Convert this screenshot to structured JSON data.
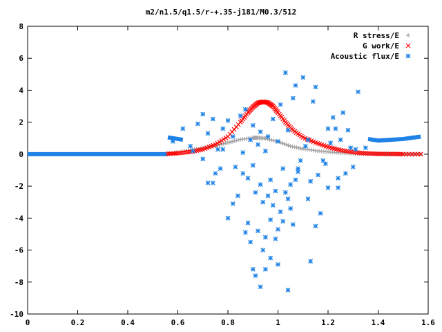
{
  "chart_data": {
    "type": "scatter",
    "title": "m2/n1.5/q1.5/r-+.35-j181/M0.3/512",
    "xlabel": "",
    "ylabel": "",
    "xlim": [
      0,
      1.6
    ],
    "ylim": [
      -10,
      8
    ],
    "x_ticks": [
      "0",
      "0.2",
      "0.4",
      "0.6",
      "0.8",
      "1",
      "1.2",
      "1.4",
      "1.6"
    ],
    "x_tick_values": [
      0,
      0.2,
      0.4,
      0.6,
      0.8,
      1.0,
      1.2,
      1.4,
      1.6
    ],
    "y_ticks": [
      "-10",
      "-8",
      "-6",
      "-4",
      "-2",
      "0",
      "2",
      "4",
      "6",
      "8"
    ],
    "y_tick_values": [
      -10,
      -8,
      -6,
      -4,
      -2,
      0,
      2,
      4,
      6,
      8
    ],
    "grid": false,
    "legend_position": "top-right",
    "series": [
      {
        "name": "R stress/E",
        "marker": "plus",
        "color": "#a0a0a0",
        "x": [
          0.56,
          0.6,
          0.65,
          0.7,
          0.75,
          0.8,
          0.85,
          0.9,
          0.92,
          0.95,
          1.0,
          1.05,
          1.1,
          1.15,
          1.2,
          1.25,
          1.3,
          1.35,
          1.4,
          1.45,
          1.5,
          1.57
        ],
        "values": [
          0.02,
          0.12,
          0.25,
          0.38,
          0.52,
          0.72,
          0.92,
          1.02,
          1.03,
          0.98,
          0.78,
          0.5,
          0.33,
          0.22,
          0.14,
          0.08,
          0.04,
          0.02,
          0.01,
          0.0,
          0.0,
          0.0
        ]
      },
      {
        "name": "G work/E",
        "marker": "cross",
        "color": "#ff0000",
        "x": [
          0.56,
          0.6,
          0.65,
          0.7,
          0.75,
          0.8,
          0.85,
          0.88,
          0.9,
          0.92,
          0.94,
          0.96,
          0.98,
          1.0,
          1.03,
          1.06,
          1.1,
          1.15,
          1.2,
          1.25,
          1.3,
          1.35,
          1.4,
          1.45,
          1.5,
          1.57
        ],
        "values": [
          0.02,
          0.06,
          0.15,
          0.3,
          0.6,
          1.1,
          2.0,
          2.6,
          2.95,
          3.2,
          3.28,
          3.22,
          3.0,
          2.6,
          2.0,
          1.5,
          1.05,
          0.72,
          0.45,
          0.25,
          0.12,
          0.05,
          0.02,
          0.01,
          0.0,
          0.0
        ]
      },
      {
        "name": "Acoustic flux/E",
        "marker": "star",
        "color": "#1e82e6",
        "x": [
          0.58,
          0.62,
          0.65,
          0.68,
          0.7,
          0.72,
          0.74,
          0.75,
          0.76,
          0.78,
          0.8,
          0.82,
          0.83,
          0.85,
          0.86,
          0.87,
          0.88,
          0.89,
          0.9,
          0.91,
          0.92,
          0.93,
          0.94,
          0.95,
          0.96,
          0.97,
          0.98,
          0.99,
          1.0,
          1.01,
          1.02,
          1.03,
          1.04,
          1.05,
          1.06,
          1.07,
          1.08,
          1.1,
          1.12,
          1.14,
          1.15,
          1.18,
          1.2,
          1.22,
          1.25,
          1.28,
          1.3,
          1.32,
          1.35,
          0.7,
          0.66,
          0.72,
          0.78,
          0.84,
          0.86,
          0.9,
          0.93,
          0.96,
          0.98,
          1.01,
          1.03,
          1.07,
          1.09,
          1.11,
          1.13,
          1.16,
          1.19,
          1.21,
          1.24,
          1.27,
          1.31,
          0.8,
          0.88,
          0.92,
          0.95,
          0.97,
          1.0,
          1.02,
          1.04,
          1.06,
          0.89,
          0.9,
          0.91,
          0.93,
          0.95,
          0.97,
          1.0,
          1.04,
          1.13,
          1.15,
          1.2,
          1.24,
          0.74,
          0.77,
          0.82,
          0.87,
          0.94,
          0.99,
          1.05,
          1.08,
          1.12,
          1.17,
          1.23,
          1.26,
          1.29
        ],
        "values": [
          0.8,
          1.6,
          0.5,
          1.9,
          2.5,
          1.3,
          2.2,
          -1.2,
          0.3,
          1.6,
          2.1,
          1.1,
          -0.8,
          2.4,
          0.1,
          2.8,
          -1.5,
          0.9,
          1.8,
          -2.4,
          0.6,
          1.4,
          -3.0,
          0.2,
          1.1,
          -1.6,
          2.2,
          -2.3,
          0.8,
          3.1,
          -0.9,
          5.1,
          1.5,
          -1.9,
          3.5,
          4.3,
          -1.1,
          4.8,
          0.9,
          3.3,
          4.2,
          -0.4,
          1.6,
          2.3,
          0.9,
          1.5,
          -0.8,
          3.9,
          0.4,
          -0.3,
          0.2,
          -1.8,
          0.3,
          -2.6,
          -1.2,
          -0.7,
          -1.9,
          -2.6,
          -3.2,
          -3.6,
          -2.4,
          -1.6,
          -0.4,
          0.5,
          -1.7,
          -1.3,
          -0.6,
          0.7,
          -2.1,
          -1.2,
          0.3,
          -4.0,
          -4.3,
          -4.8,
          -5.2,
          -4.1,
          -4.7,
          -4.2,
          -2.8,
          -4.4,
          -5.5,
          -7.2,
          -7.6,
          -8.3,
          -7.2,
          -6.5,
          -6.9,
          -8.5,
          -6.7,
          -4.5,
          -2.1,
          -1.5,
          -1.8,
          -0.9,
          -3.1,
          -4.9,
          -6.0,
          -5.3,
          -3.4,
          -0.9,
          -2.8,
          -3.7,
          1.6,
          2.6,
          0.4
        ]
      }
    ]
  }
}
